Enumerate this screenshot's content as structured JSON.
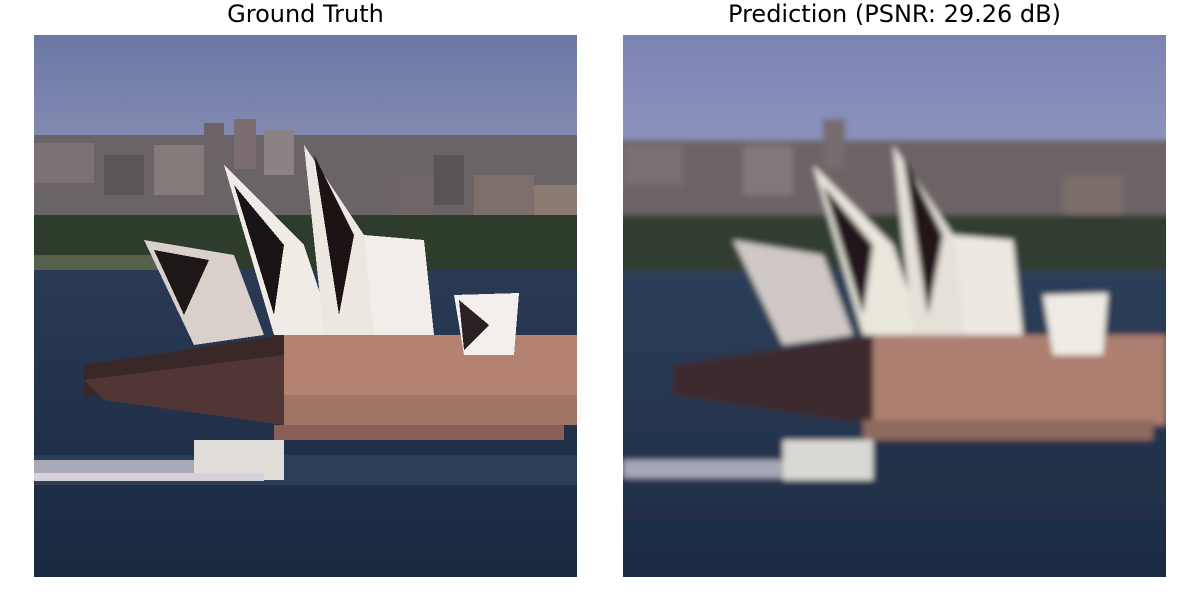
{
  "panels": {
    "left": {
      "title": "Ground Truth",
      "image_subject": "sydney-opera-house-low-resolution"
    },
    "right": {
      "title": "Prediction (PSNR: 29.26 dB)",
      "image_subject": "sydney-opera-house-reconstruction"
    }
  },
  "colors": {
    "sky_top": "#6f7aa6",
    "sky_bottom": "#8c94b8",
    "city": "#5f5a5e",
    "trees": "#2c3b2a",
    "water": "#1f2d45",
    "water_light": "#39506e",
    "shell_white": "#e9e4df",
    "shell_dark": "#1c1416",
    "podium": "#b58270",
    "podium_dark": "#4e3130",
    "boat": "#d8d8d8"
  }
}
